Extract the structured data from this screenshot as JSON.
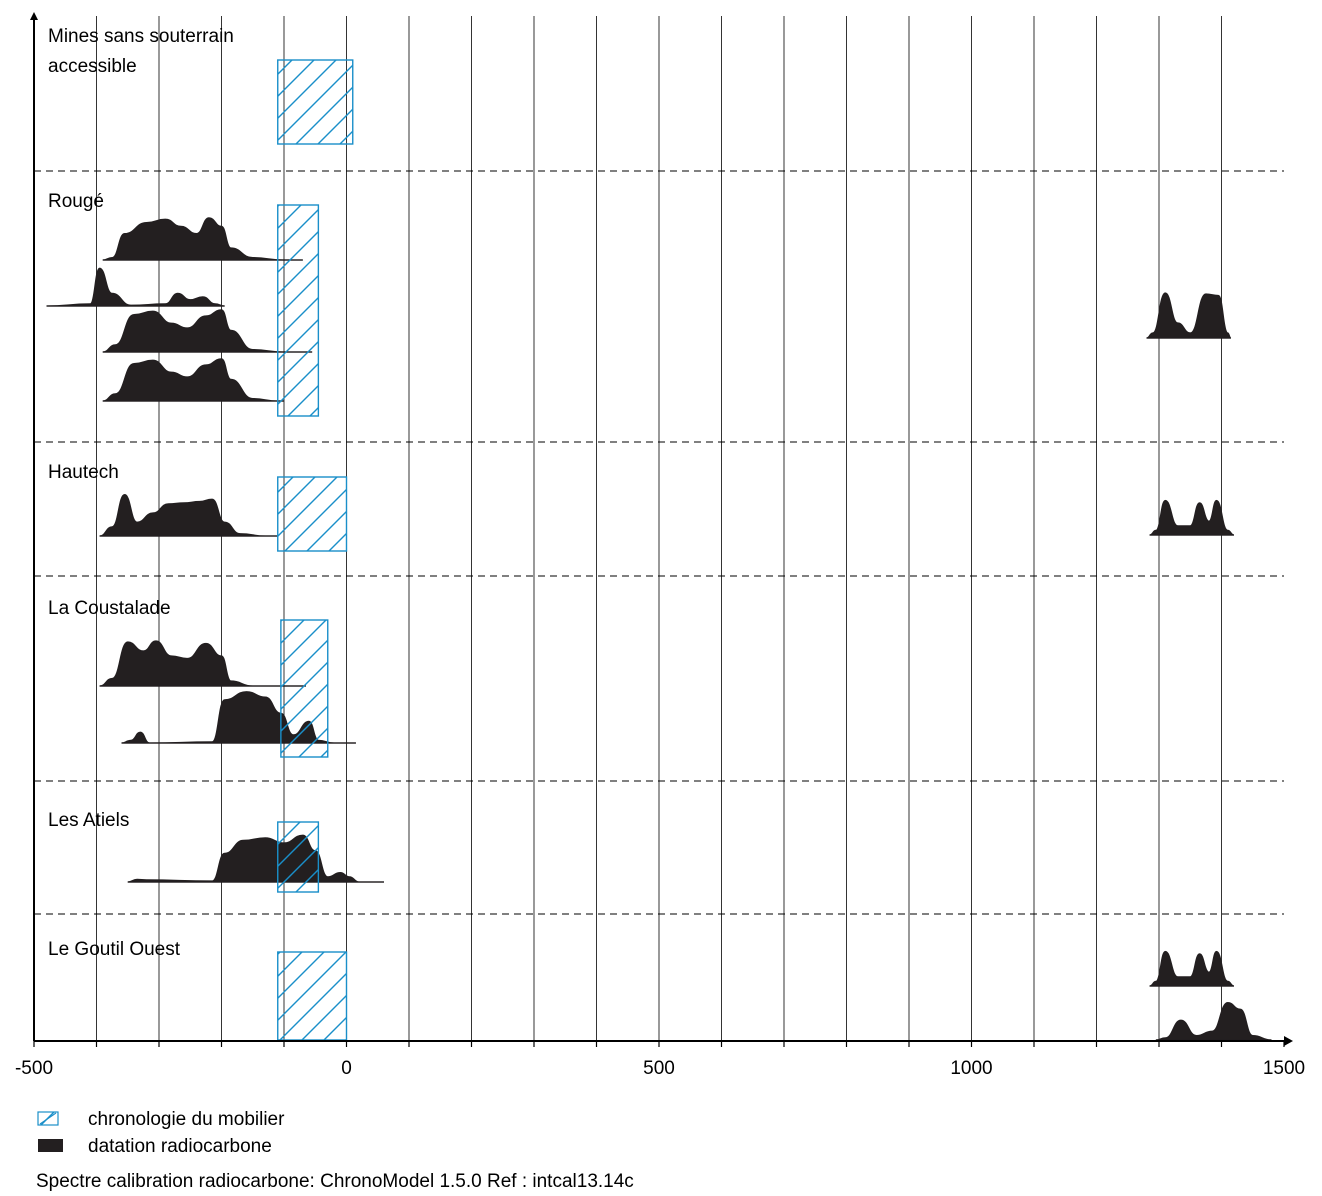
{
  "chart_data": {
    "type": "range-and-density",
    "title": "",
    "xlabel": "",
    "ylabel": "",
    "xlim": [
      -500,
      1500
    ],
    "x_ticks": [
      -500,
      0,
      500,
      1000,
      1500
    ],
    "x_gridlines_every": 100,
    "grid": true,
    "sites": [
      {
        "name": "Mines sans souterrain accessible",
        "label_lines": [
          "Mines sans souterrain",
          "accessible"
        ],
        "mobilier_range": [
          -110,
          10
        ],
        "radiocarbon": []
      },
      {
        "name": "Rougé",
        "label_lines": [
          "Rougé"
        ],
        "mobilier_range": [
          -110,
          -45
        ],
        "radiocarbon": [
          {
            "range": [
              -390,
              -70
            ],
            "peaks": [
              [
                -375,
                0.05
              ],
              [
                -355,
                0.55
              ],
              [
                -320,
                0.78
              ],
              [
                -290,
                0.85
              ],
              [
                -265,
                0.7
              ],
              [
                -240,
                0.55
              ],
              [
                -220,
                0.88
              ],
              [
                -200,
                0.7
              ],
              [
                -185,
                0.25
              ],
              [
                -150,
                0.05
              ],
              [
                -100,
                0.0
              ]
            ]
          },
          {
            "range": [
              -480,
              -195
            ],
            "peaks": [
              [
                -410,
                0.05
              ],
              [
                -395,
                0.9
              ],
              [
                -375,
                0.3
              ],
              [
                -345,
                0.02
              ],
              [
                -290,
                0.05
              ],
              [
                -270,
                0.3
              ],
              [
                -250,
                0.15
              ],
              [
                -230,
                0.22
              ],
              [
                -210,
                0.05
              ]
            ]
          },
          {
            "range": [
              -390,
              -55
            ],
            "peaks": [
              [
                -370,
                0.15
              ],
              [
                -340,
                0.78
              ],
              [
                -310,
                0.85
              ],
              [
                -280,
                0.6
              ],
              [
                -255,
                0.5
              ],
              [
                -225,
                0.75
              ],
              [
                -200,
                0.88
              ],
              [
                -185,
                0.45
              ],
              [
                -150,
                0.05
              ],
              [
                -100,
                0.0
              ]
            ]
          },
          {
            "range": [
              -390,
              -100
            ],
            "peaks": [
              [
                -370,
                0.15
              ],
              [
                -340,
                0.78
              ],
              [
                -310,
                0.85
              ],
              [
                -280,
                0.6
              ],
              [
                -255,
                0.5
              ],
              [
                -225,
                0.75
              ],
              [
                -200,
                0.88
              ],
              [
                -185,
                0.45
              ],
              [
                -150,
                0.05
              ],
              [
                -110,
                0.0
              ]
            ]
          },
          {
            "range": [
              1280,
              1415
            ],
            "peaks": [
              [
                1290,
                0.1
              ],
              [
                1310,
                0.9
              ],
              [
                1330,
                0.3
              ],
              [
                1350,
                0.1
              ],
              [
                1375,
                0.88
              ],
              [
                1395,
                0.85
              ],
              [
                1410,
                0.1
              ]
            ]
          }
        ]
      },
      {
        "name": "Hautech",
        "label_lines": [
          "Hautech"
        ],
        "mobilier_range": [
          -110,
          0
        ],
        "radiocarbon": [
          {
            "range": [
              -395,
              -110
            ],
            "peaks": [
              [
                -375,
                0.2
              ],
              [
                -355,
                0.9
              ],
              [
                -335,
                0.3
              ],
              [
                -310,
                0.5
              ],
              [
                -285,
                0.7
              ],
              [
                -260,
                0.72
              ],
              [
                -235,
                0.75
              ],
              [
                -215,
                0.8
              ],
              [
                -195,
                0.3
              ],
              [
                -170,
                0.05
              ],
              [
                -130,
                0.0
              ]
            ]
          },
          {
            "range": [
              1285,
              1420
            ],
            "peaks": [
              [
                1295,
                0.1
              ],
              [
                1310,
                0.75
              ],
              [
                1330,
                0.2
              ],
              [
                1350,
                0.2
              ],
              [
                1365,
                0.7
              ],
              [
                1380,
                0.3
              ],
              [
                1392,
                0.75
              ],
              [
                1410,
                0.1
              ]
            ]
          }
        ]
      },
      {
        "name": "La Coustalade",
        "label_lines": [
          "La Coustalade"
        ],
        "mobilier_range": [
          -105,
          -30
        ],
        "radiocarbon": [
          {
            "range": [
              -395,
              -65
            ],
            "peaks": [
              [
                -375,
                0.15
              ],
              [
                -350,
                0.88
              ],
              [
                -325,
                0.7
              ],
              [
                -305,
                0.9
              ],
              [
                -280,
                0.6
              ],
              [
                -255,
                0.55
              ],
              [
                -225,
                0.85
              ],
              [
                -200,
                0.6
              ],
              [
                -185,
                0.1
              ],
              [
                -150,
                0.0
              ]
            ]
          },
          {
            "range": [
              -360,
              15
            ],
            "peaks": [
              [
                -345,
                0.05
              ],
              [
                -330,
                0.2
              ],
              [
                -315,
                0.0
              ],
              [
                -215,
                0.02
              ],
              [
                -195,
                0.8
              ],
              [
                -160,
                0.95
              ],
              [
                -130,
                0.85
              ],
              [
                -105,
                0.55
              ],
              [
                -85,
                0.15
              ],
              [
                -60,
                0.4
              ],
              [
                -45,
                0.05
              ],
              [
                -20,
                0.0
              ]
            ]
          }
        ]
      },
      {
        "name": "Les Atiels",
        "label_lines": [
          "Les Atiels"
        ],
        "mobilier_range": [
          -110,
          -45
        ],
        "radiocarbon": [
          {
            "range": [
              -350,
              60
            ],
            "peaks": [
              [
                -335,
                0.05
              ],
              [
                -320,
                0.04
              ],
              [
                -215,
                0.02
              ],
              [
                -195,
                0.55
              ],
              [
                -165,
                0.8
              ],
              [
                -130,
                0.85
              ],
              [
                -100,
                0.75
              ],
              [
                -70,
                0.9
              ],
              [
                -50,
                0.6
              ],
              [
                -30,
                0.1
              ],
              [
                -10,
                0.18
              ],
              [
                5,
                0.1
              ],
              [
                20,
                0.0
              ]
            ]
          }
        ]
      },
      {
        "name": "Le Goutil Ouest",
        "label_lines": [
          "Le Goutil Ouest"
        ],
        "mobilier_range": [
          -110,
          0
        ],
        "radiocarbon": [
          {
            "range": [
              1285,
              1420
            ],
            "peaks": [
              [
                1295,
                0.1
              ],
              [
                1310,
                0.75
              ],
              [
                1330,
                0.2
              ],
              [
                1350,
                0.2
              ],
              [
                1365,
                0.7
              ],
              [
                1380,
                0.3
              ],
              [
                1392,
                0.75
              ],
              [
                1410,
                0.1
              ]
            ]
          },
          {
            "range": [
              1295,
              1480
            ],
            "peaks": [
              [
                1310,
                0.05
              ],
              [
                1335,
                0.45
              ],
              [
                1360,
                0.1
              ],
              [
                1385,
                0.2
              ],
              [
                1410,
                0.85
              ],
              [
                1430,
                0.7
              ],
              [
                1450,
                0.1
              ]
            ]
          }
        ]
      }
    ]
  },
  "legend": {
    "items": [
      {
        "label": "chronologie du mobilier",
        "swatch": "hatched",
        "color": "#1a8fc9"
      },
      {
        "label": "datation radiocarbone",
        "swatch": "solid",
        "color": "#231f20"
      }
    ],
    "note": "Spectre calibration radiocarbone: ChronoModel 1.5.0  Ref : intcal13.14c"
  },
  "colors": {
    "density_fill": "#231f20",
    "range_stroke": "#1a8fc9",
    "grid": "#000000"
  }
}
